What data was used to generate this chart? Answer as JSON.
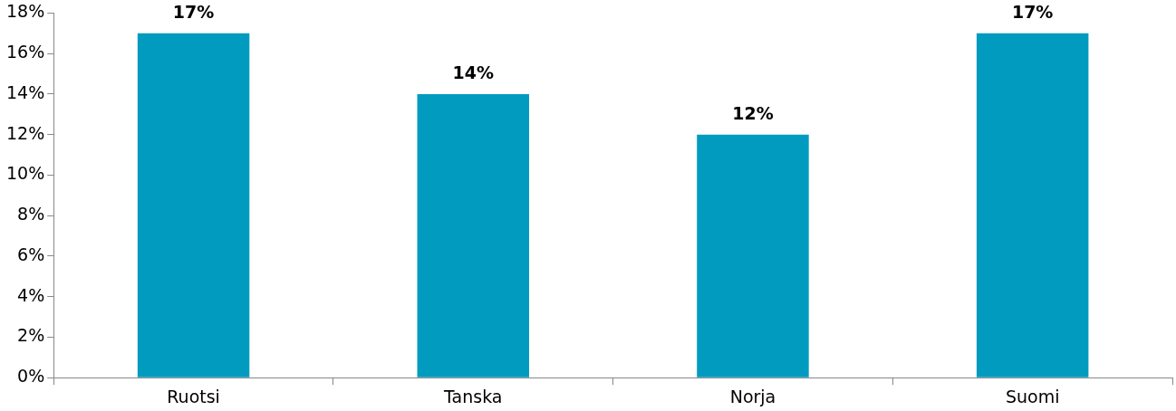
{
  "chart_data": {
    "type": "bar",
    "categories": [
      "Ruotsi",
      "Tanska",
      "Norja",
      "Suomi"
    ],
    "values": [
      17,
      14,
      12,
      17
    ],
    "value_labels": [
      "17%",
      "14%",
      "12%",
      "17%"
    ],
    "color": "#009bbf",
    "ylim": [
      0,
      18
    ],
    "yticks": [
      {
        "value": 0,
        "label": "0%"
      },
      {
        "value": 2,
        "label": "2%"
      },
      {
        "value": 4,
        "label": "4%"
      },
      {
        "value": 6,
        "label": "6%"
      },
      {
        "value": 8,
        "label": "8%"
      },
      {
        "value": 10,
        "label": "10%"
      },
      {
        "value": 12,
        "label": "12%"
      },
      {
        "value": 14,
        "label": "14%"
      },
      {
        "value": 16,
        "label": "16%"
      },
      {
        "value": 18,
        "label": "18%"
      }
    ],
    "grid": false,
    "legend": false
  }
}
